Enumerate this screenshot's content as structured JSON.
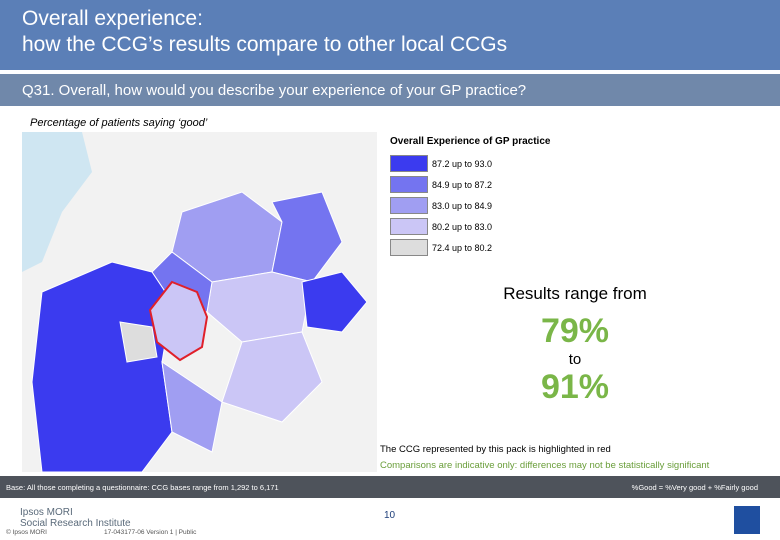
{
  "header": {
    "title_lines": [
      "Overall experience:",
      "how the CCG’s results compare to other local CCGs"
    ]
  },
  "question": "Q31. Overall, how would you describe your experience of your GP practice?",
  "subtitle": "Percentage of patients saying ‘good’",
  "legend": {
    "title": "Overall Experience of GP practice",
    "items": [
      {
        "label": "87.2 up to 93.0",
        "color": "#3b3bef"
      },
      {
        "label": "84.9 up to 87.2",
        "color": "#7474f0"
      },
      {
        "label": "83.0 up to 84.9",
        "color": "#a09ef2"
      },
      {
        "label": "80.2 up to 83.0",
        "color": "#cbc6f6"
      },
      {
        "label": "72.4 up to 80.2",
        "color": "#dddddd"
      }
    ]
  },
  "results": {
    "intro": "Results range from",
    "low": "79%",
    "connector": "to",
    "high": "91%"
  },
  "notes": [
    "The CCG represented by this pack is highlighted in red",
    "Comparisons are indicative only: differences may not be statistically significant"
  ],
  "footer": {
    "base": "Base: All those completing a questionnaire: CCG bases range from 1,292 to 6,171",
    "definition": "%Good = %Very good + %Fairly good",
    "page": "10",
    "logo_lines": [
      "Ipsos MORI",
      "Social Research Institute"
    ],
    "copyright": "© Ipsos MORI",
    "job": "17-043177-06 Version 1 | Public"
  }
}
